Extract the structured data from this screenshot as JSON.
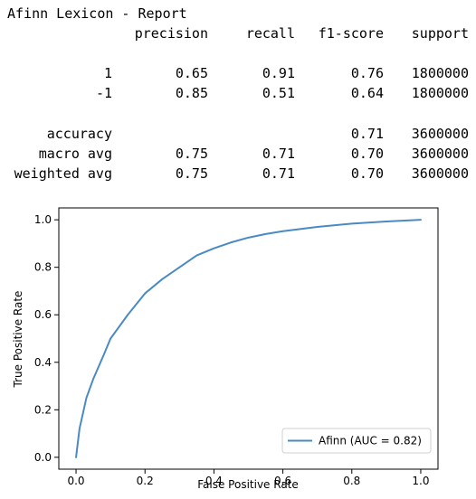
{
  "report": {
    "title": "Afinn Lexicon - Report",
    "headers": [
      "precision",
      "recall",
      "f1-score",
      "support"
    ],
    "rows": [
      {
        "label": "1",
        "precision": "0.65",
        "recall": "0.91",
        "f1": "0.76",
        "support": "1800000"
      },
      {
        "label": "-1",
        "precision": "0.85",
        "recall": "0.51",
        "f1": "0.64",
        "support": "1800000"
      },
      {
        "label": "accuracy",
        "precision": "",
        "recall": "",
        "f1": "0.71",
        "support": "3600000"
      },
      {
        "label": "macro avg",
        "precision": "0.75",
        "recall": "0.71",
        "f1": "0.70",
        "support": "3600000"
      },
      {
        "label": "weighted avg",
        "precision": "0.75",
        "recall": "0.71",
        "f1": "0.70",
        "support": "3600000"
      }
    ]
  },
  "chart_data": {
    "type": "line",
    "xlabel": "False Positive Rate",
    "ylabel": "True Positive Rate",
    "xlim": [
      -0.05,
      1.05
    ],
    "ylim": [
      -0.05,
      1.05
    ],
    "xticks": [
      "0.0",
      "0.2",
      "0.4",
      "0.6",
      "0.8",
      "1.0"
    ],
    "yticks": [
      "0.0",
      "0.2",
      "0.4",
      "0.6",
      "0.8",
      "1.0"
    ],
    "legend_position": "bottom-right",
    "color": "#4a8ac4",
    "series": [
      {
        "name": "Afinn (AUC = 0.82)",
        "x": [
          0.0,
          0.01,
          0.03,
          0.05,
          0.08,
          0.1,
          0.15,
          0.2,
          0.25,
          0.3,
          0.35,
          0.4,
          0.45,
          0.5,
          0.55,
          0.6,
          0.7,
          0.8,
          0.9,
          1.0
        ],
        "y": [
          0.0,
          0.12,
          0.25,
          0.33,
          0.43,
          0.5,
          0.6,
          0.69,
          0.75,
          0.8,
          0.85,
          0.88,
          0.905,
          0.925,
          0.94,
          0.952,
          0.97,
          0.984,
          0.993,
          1.0
        ]
      }
    ]
  }
}
